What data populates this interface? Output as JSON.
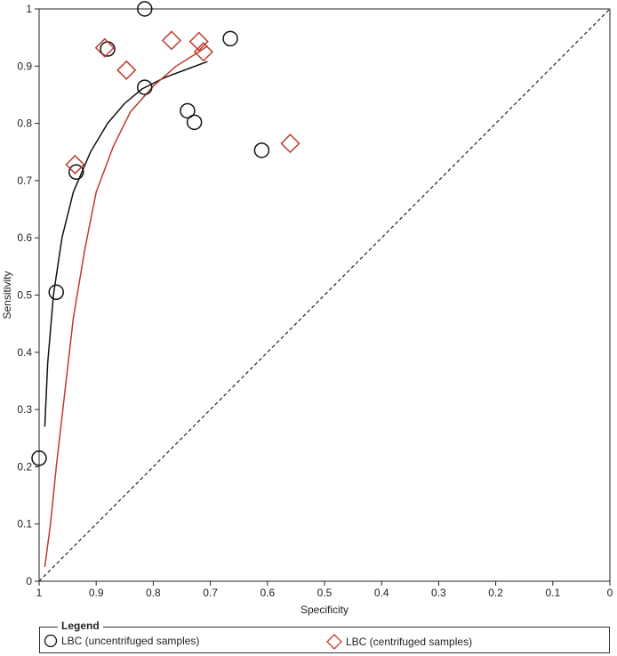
{
  "chart_data": {
    "type": "scatter",
    "title": "",
    "xlabel": "Specificity",
    "ylabel": "Sensitivity",
    "xlim": [
      1,
      0
    ],
    "ylim": [
      0,
      1
    ],
    "x_reversed": true,
    "xticks": [
      "1",
      "0.9",
      "0.8",
      "0.7",
      "0.6",
      "0.5",
      "0.4",
      "0.3",
      "0.2",
      "0.1",
      "0"
    ],
    "yticks": [
      "0",
      "0.1",
      "0.2",
      "0.3",
      "0.4",
      "0.5",
      "0.6",
      "0.7",
      "0.8",
      "0.9",
      "1"
    ],
    "grid": false,
    "legend_title": "Legend",
    "legend_position": "bottom",
    "series": [
      {
        "name": "LBC (uncentrifuged samples)",
        "marker": "circle",
        "color": "#111111",
        "points": [
          {
            "x": 1.0,
            "y": 0.215
          },
          {
            "x": 0.97,
            "y": 0.505
          },
          {
            "x": 0.935,
            "y": 0.715
          },
          {
            "x": 0.88,
            "y": 0.93
          },
          {
            "x": 0.815,
            "y": 1.0
          },
          {
            "x": 0.815,
            "y": 0.863
          },
          {
            "x": 0.74,
            "y": 0.822
          },
          {
            "x": 0.728,
            "y": 0.802
          },
          {
            "x": 0.665,
            "y": 0.948
          },
          {
            "x": 0.61,
            "y": 0.753
          }
        ]
      },
      {
        "name": "LBC (centrifuged samples)",
        "marker": "diamond",
        "color": "#c0392b",
        "points": [
          {
            "x": 0.937,
            "y": 0.728
          },
          {
            "x": 0.885,
            "y": 0.932
          },
          {
            "x": 0.847,
            "y": 0.893
          },
          {
            "x": 0.768,
            "y": 0.945
          },
          {
            "x": 0.72,
            "y": 0.943
          },
          {
            "x": 0.712,
            "y": 0.925
          },
          {
            "x": 0.56,
            "y": 0.765
          }
        ]
      }
    ],
    "curves": [
      {
        "series": "LBC (uncentrifuged samples)",
        "color": "#111111",
        "points": [
          [
            0.99,
            0.27
          ],
          [
            0.985,
            0.38
          ],
          [
            0.975,
            0.5
          ],
          [
            0.96,
            0.6
          ],
          [
            0.94,
            0.68
          ],
          [
            0.91,
            0.75
          ],
          [
            0.88,
            0.8
          ],
          [
            0.85,
            0.835
          ],
          [
            0.82,
            0.86
          ],
          [
            0.78,
            0.88
          ],
          [
            0.74,
            0.895
          ],
          [
            0.705,
            0.908
          ]
        ]
      },
      {
        "series": "LBC (centrifuged samples)",
        "color": "#c0392b",
        "points": [
          [
            0.99,
            0.025
          ],
          [
            0.98,
            0.1
          ],
          [
            0.97,
            0.2
          ],
          [
            0.955,
            0.33
          ],
          [
            0.94,
            0.46
          ],
          [
            0.92,
            0.58
          ],
          [
            0.9,
            0.68
          ],
          [
            0.87,
            0.76
          ],
          [
            0.84,
            0.82
          ],
          [
            0.8,
            0.865
          ],
          [
            0.76,
            0.9
          ],
          [
            0.72,
            0.925
          ],
          [
            0.705,
            0.935
          ]
        ]
      }
    ],
    "reference_line": {
      "from": [
        1,
        0
      ],
      "to": [
        0,
        1
      ],
      "style": "dashed"
    }
  }
}
